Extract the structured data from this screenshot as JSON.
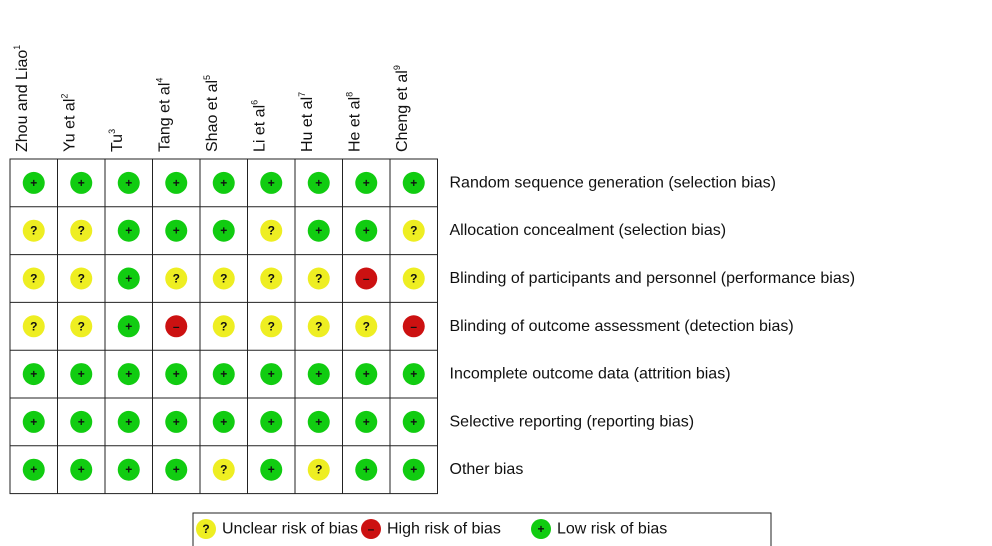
{
  "studies": [
    {
      "name": "Zhou and Liao",
      "ref": "1"
    },
    {
      "name": "Yu et al",
      "ref": "2"
    },
    {
      "name": "Tu",
      "ref": "3"
    },
    {
      "name": "Tang et al",
      "ref": "4"
    },
    {
      "name": "Shao et al",
      "ref": "5"
    },
    {
      "name": "Li et al",
      "ref": "6"
    },
    {
      "name": "Hu et al",
      "ref": "7"
    },
    {
      "name": "He et al",
      "ref": "8"
    },
    {
      "name": "Cheng et al",
      "ref": "9"
    }
  ],
  "domains": [
    "Random sequence generation (selection bias)",
    "Allocation concealment (selection bias)",
    "Blinding of participants and personnel (performance bias)",
    "Blinding of outcome assessment (detection bias)",
    "Incomplete outcome data (attrition bias)",
    "Selective reporting (reporting bias)",
    "Other bias"
  ],
  "judgments": [
    [
      "+",
      "+",
      "+",
      "+",
      "+",
      "+",
      "+",
      "+",
      "+"
    ],
    [
      "?",
      "?",
      "+",
      "+",
      "+",
      "?",
      "+",
      "+",
      "?"
    ],
    [
      "?",
      "?",
      "+",
      "?",
      "?",
      "?",
      "?",
      "–",
      "?"
    ],
    [
      "?",
      "?",
      "+",
      "–",
      "?",
      "?",
      "?",
      "?",
      "–"
    ],
    [
      "+",
      "+",
      "+",
      "+",
      "+",
      "+",
      "+",
      "+",
      "+"
    ],
    [
      "+",
      "+",
      "+",
      "+",
      "+",
      "+",
      "+",
      "+",
      "+"
    ],
    [
      "+",
      "+",
      "+",
      "+",
      "?",
      "+",
      "?",
      "+",
      "+"
    ]
  ],
  "legend": [
    {
      "symbol": "?",
      "label": "Unclear risk of bias",
      "color": "#eeee22"
    },
    {
      "symbol": "–",
      "label": "High risk of bias",
      "color": "#cc1111"
    },
    {
      "symbol": "+",
      "label": "Low risk of bias",
      "color": "#11cc11"
    }
  ]
}
